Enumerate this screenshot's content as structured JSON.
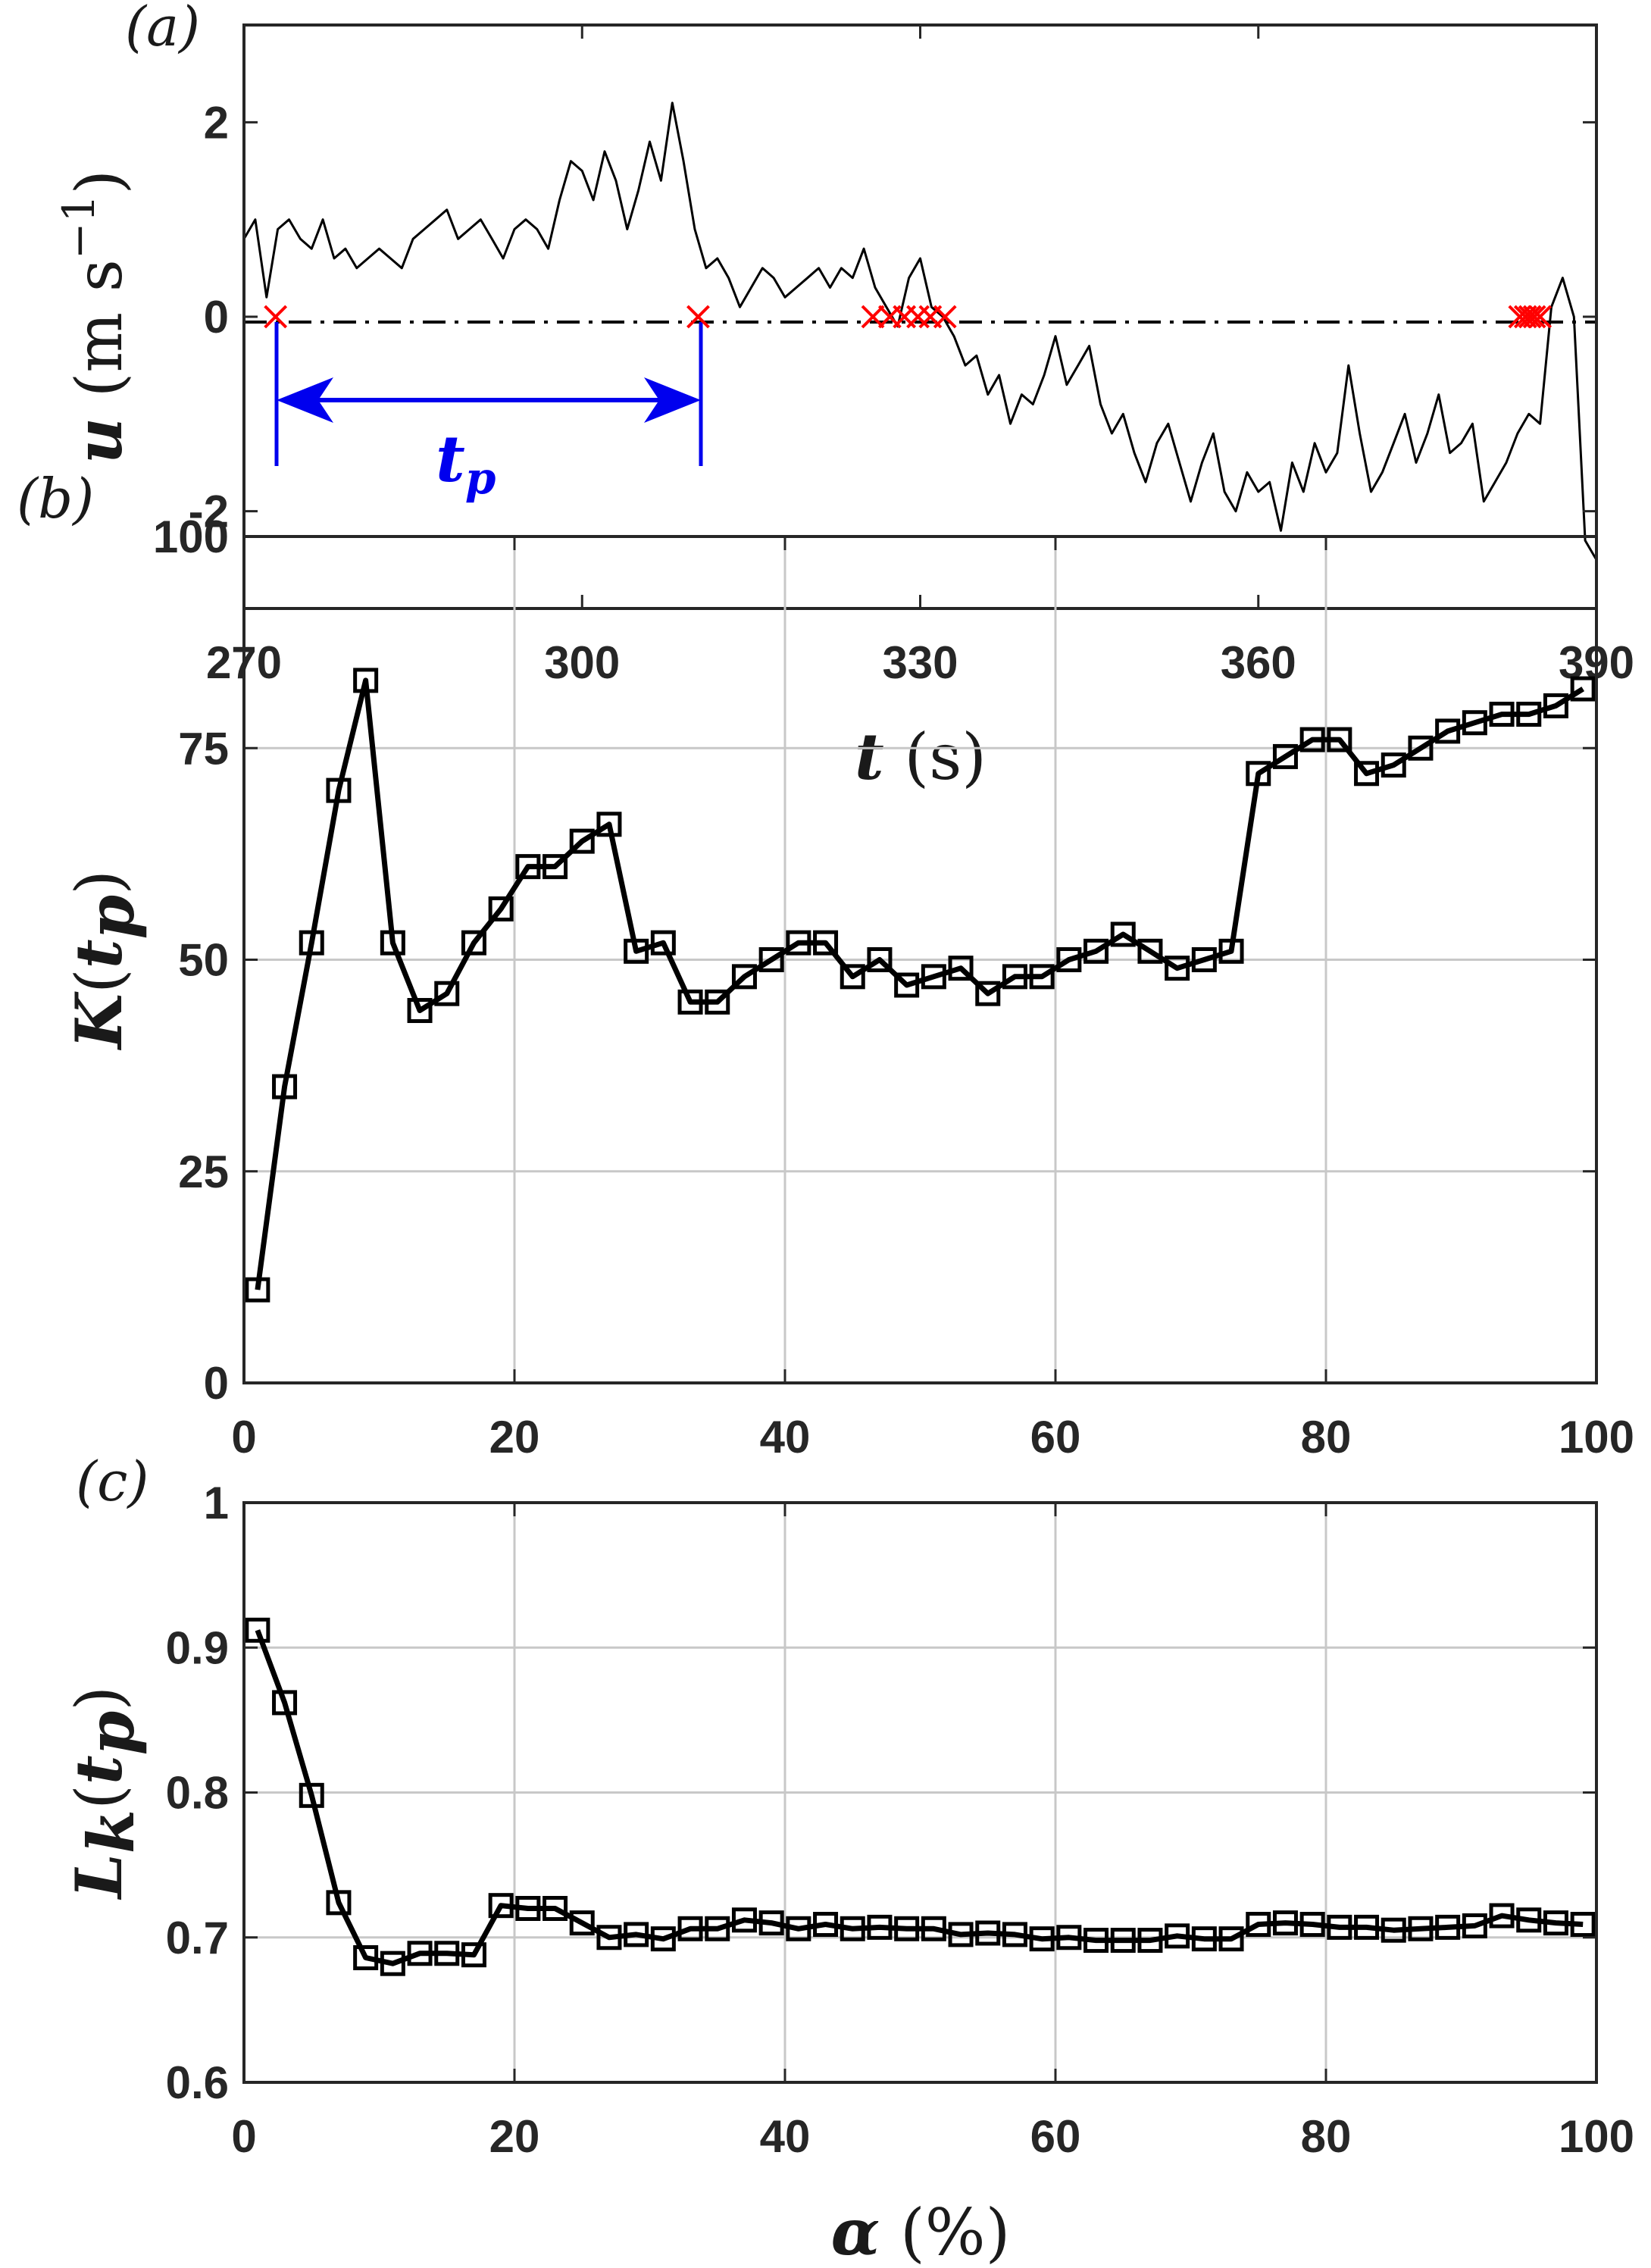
{
  "chart_data": [
    {
      "id": "a",
      "type": "line",
      "panel_label": "(a)",
      "xlabel": "t (s)",
      "ylabel": "u (m s−1)",
      "xlim": [
        270,
        390
      ],
      "ylim": [
        -3,
        3
      ],
      "xticks": [
        "270",
        "300",
        "330",
        "360",
        "390"
      ],
      "xtick_values": [
        270,
        300,
        330,
        360,
        390
      ],
      "yticks": [
        "2",
        "0",
        "-2"
      ],
      "ytick_values": [
        2,
        0,
        -2
      ],
      "grid": false,
      "colors": {
        "line": "#000000",
        "crossing": "#ff0000",
        "annotation": "#0000ee"
      },
      "series": [
        {
          "x": [
            270,
            271,
            272,
            273,
            274,
            275,
            276,
            277,
            278,
            279,
            280,
            281,
            282,
            283,
            284,
            285,
            286,
            287,
            288,
            289,
            290,
            291,
            292,
            293,
            294,
            295,
            296,
            297,
            298,
            299,
            300,
            301,
            302,
            303,
            304,
            305,
            306,
            307,
            308,
            309,
            310,
            311,
            312,
            313,
            314,
            315,
            316,
            317,
            318,
            319,
            320,
            321,
            322,
            323,
            324,
            325,
            326,
            327,
            328,
            329,
            330,
            331,
            332,
            333,
            334,
            335,
            336,
            337,
            338,
            339,
            340,
            341,
            342,
            343,
            344,
            345,
            346,
            347,
            348,
            349,
            350,
            351,
            352,
            353,
            354,
            355,
            356,
            357,
            358,
            359,
            360,
            361,
            362,
            363,
            364,
            365,
            366,
            367,
            368,
            369,
            370,
            371,
            372,
            373,
            374,
            375,
            376,
            377,
            378,
            379,
            380,
            381,
            382,
            383,
            384,
            385,
            386,
            387,
            388,
            389,
            390
          ],
          "y": [
            0.8,
            1.0,
            0.2,
            0.9,
            1.0,
            0.8,
            0.7,
            1.0,
            0.6,
            0.7,
            0.5,
            0.6,
            0.7,
            0.6,
            0.5,
            0.8,
            0.9,
            1.0,
            1.1,
            0.8,
            0.9,
            1.0,
            0.8,
            0.6,
            0.9,
            1.0,
            0.9,
            0.7,
            1.2,
            1.6,
            1.5,
            1.2,
            1.7,
            1.4,
            0.9,
            1.3,
            1.8,
            1.4,
            2.2,
            1.6,
            0.9,
            0.5,
            0.6,
            0.4,
            0.1,
            0.3,
            0.5,
            0.4,
            0.2,
            0.3,
            0.4,
            0.5,
            0.3,
            0.5,
            0.4,
            0.7,
            0.3,
            0.1,
            -0.1,
            0.4,
            0.6,
            0.1,
            0.0,
            -0.2,
            -0.5,
            -0.4,
            -0.8,
            -0.6,
            -1.1,
            -0.8,
            -0.9,
            -0.6,
            -0.2,
            -0.7,
            -0.5,
            -0.3,
            -0.9,
            -1.2,
            -1.0,
            -1.4,
            -1.7,
            -1.3,
            -1.1,
            -1.5,
            -1.9,
            -1.5,
            -1.2,
            -1.8,
            -2.0,
            -1.6,
            -1.8,
            -1.7,
            -2.2,
            -1.5,
            -1.8,
            -1.3,
            -1.6,
            -1.4,
            -0.5,
            -1.2,
            -1.8,
            -1.6,
            -1.3,
            -1.0,
            -1.5,
            -1.2,
            -0.8,
            -1.4,
            -1.3,
            -1.1,
            -1.9,
            -1.7,
            -1.5,
            -1.2,
            -1.0,
            -1.1,
            0.1,
            0.4,
            0.0,
            -2.3,
            -2.5
          ]
        }
      ],
      "crossings": [
        272.8,
        310.3,
        325.8,
        327.3,
        328.6,
        329.8,
        330.9,
        332.2,
        383.2,
        383.7,
        384.1,
        384.5,
        385.0
      ],
      "annotation": {
        "label": "tp",
        "x_start": 272.8,
        "x_end": 310.3,
        "y": -0.8
      }
    },
    {
      "id": "b",
      "type": "line",
      "panel_label": "(b)",
      "ylabel": "K(tp)",
      "xlim": [
        0,
        100
      ],
      "ylim": [
        0,
        100
      ],
      "xticks": [
        "0",
        "20",
        "40",
        "60",
        "80",
        "100"
      ],
      "xtick_values": [
        0,
        20,
        40,
        60,
        80,
        100
      ],
      "yticks": [
        "0",
        "25",
        "50",
        "75",
        "100"
      ],
      "ytick_values": [
        0,
        25,
        50,
        75,
        100
      ],
      "grid": true,
      "marker": "square",
      "colors": {
        "line": "#000000"
      },
      "series": [
        {
          "x": [
            1,
            3,
            5,
            7,
            9,
            11,
            13,
            15,
            17,
            19,
            21,
            23,
            25,
            27,
            29,
            31,
            33,
            35,
            37,
            39,
            41,
            43,
            45,
            47,
            49,
            51,
            53,
            55,
            57,
            59,
            61,
            63,
            65,
            67,
            69,
            71,
            73,
            75,
            77,
            79,
            81,
            83,
            85,
            87,
            89,
            91,
            93,
            95,
            97,
            99
          ],
          "y": [
            11,
            35,
            52,
            70,
            83,
            52,
            44,
            46,
            52,
            56,
            61,
            61,
            64,
            66,
            51,
            52,
            45,
            45,
            48,
            50,
            52,
            52,
            48,
            50,
            47,
            48,
            49,
            46,
            48,
            48,
            50,
            51,
            53,
            51,
            49,
            50,
            51,
            72,
            74,
            76,
            76,
            72,
            73,
            75,
            77,
            78,
            79,
            79,
            80,
            82
          ]
        }
      ]
    },
    {
      "id": "c",
      "type": "line",
      "panel_label": "(c)",
      "xlabel": "α (%)",
      "ylabel": "Lk(tp)",
      "xlim": [
        0,
        100
      ],
      "ylim": [
        0.6,
        1.0
      ],
      "xticks": [
        "0",
        "20",
        "40",
        "60",
        "80",
        "100"
      ],
      "xtick_values": [
        0,
        20,
        40,
        60,
        80,
        100
      ],
      "yticks": [
        "0.6",
        "0.7",
        "0.8",
        "0.9",
        "1"
      ],
      "ytick_values": [
        0.6,
        0.7,
        0.8,
        0.9,
        1.0
      ],
      "grid": true,
      "marker": "square",
      "colors": {
        "line": "#000000"
      },
      "series": [
        {
          "x": [
            1,
            3,
            5,
            7,
            9,
            11,
            13,
            15,
            17,
            19,
            21,
            23,
            25,
            27,
            29,
            31,
            33,
            35,
            37,
            39,
            41,
            43,
            45,
            47,
            49,
            51,
            53,
            55,
            57,
            59,
            61,
            63,
            65,
            67,
            69,
            71,
            73,
            75,
            77,
            79,
            81,
            83,
            85,
            87,
            89,
            91,
            93,
            95,
            97,
            99
          ],
          "y": [
            0.912,
            0.862,
            0.798,
            0.724,
            0.686,
            0.682,
            0.689,
            0.689,
            0.688,
            0.722,
            0.72,
            0.72,
            0.71,
            0.7,
            0.702,
            0.699,
            0.706,
            0.706,
            0.712,
            0.71,
            0.706,
            0.709,
            0.706,
            0.707,
            0.706,
            0.706,
            0.702,
            0.703,
            0.702,
            0.699,
            0.7,
            0.698,
            0.698,
            0.698,
            0.701,
            0.699,
            0.699,
            0.709,
            0.71,
            0.709,
            0.707,
            0.707,
            0.705,
            0.706,
            0.707,
            0.708,
            0.715,
            0.712,
            0.71,
            0.709
          ]
        }
      ]
    }
  ]
}
